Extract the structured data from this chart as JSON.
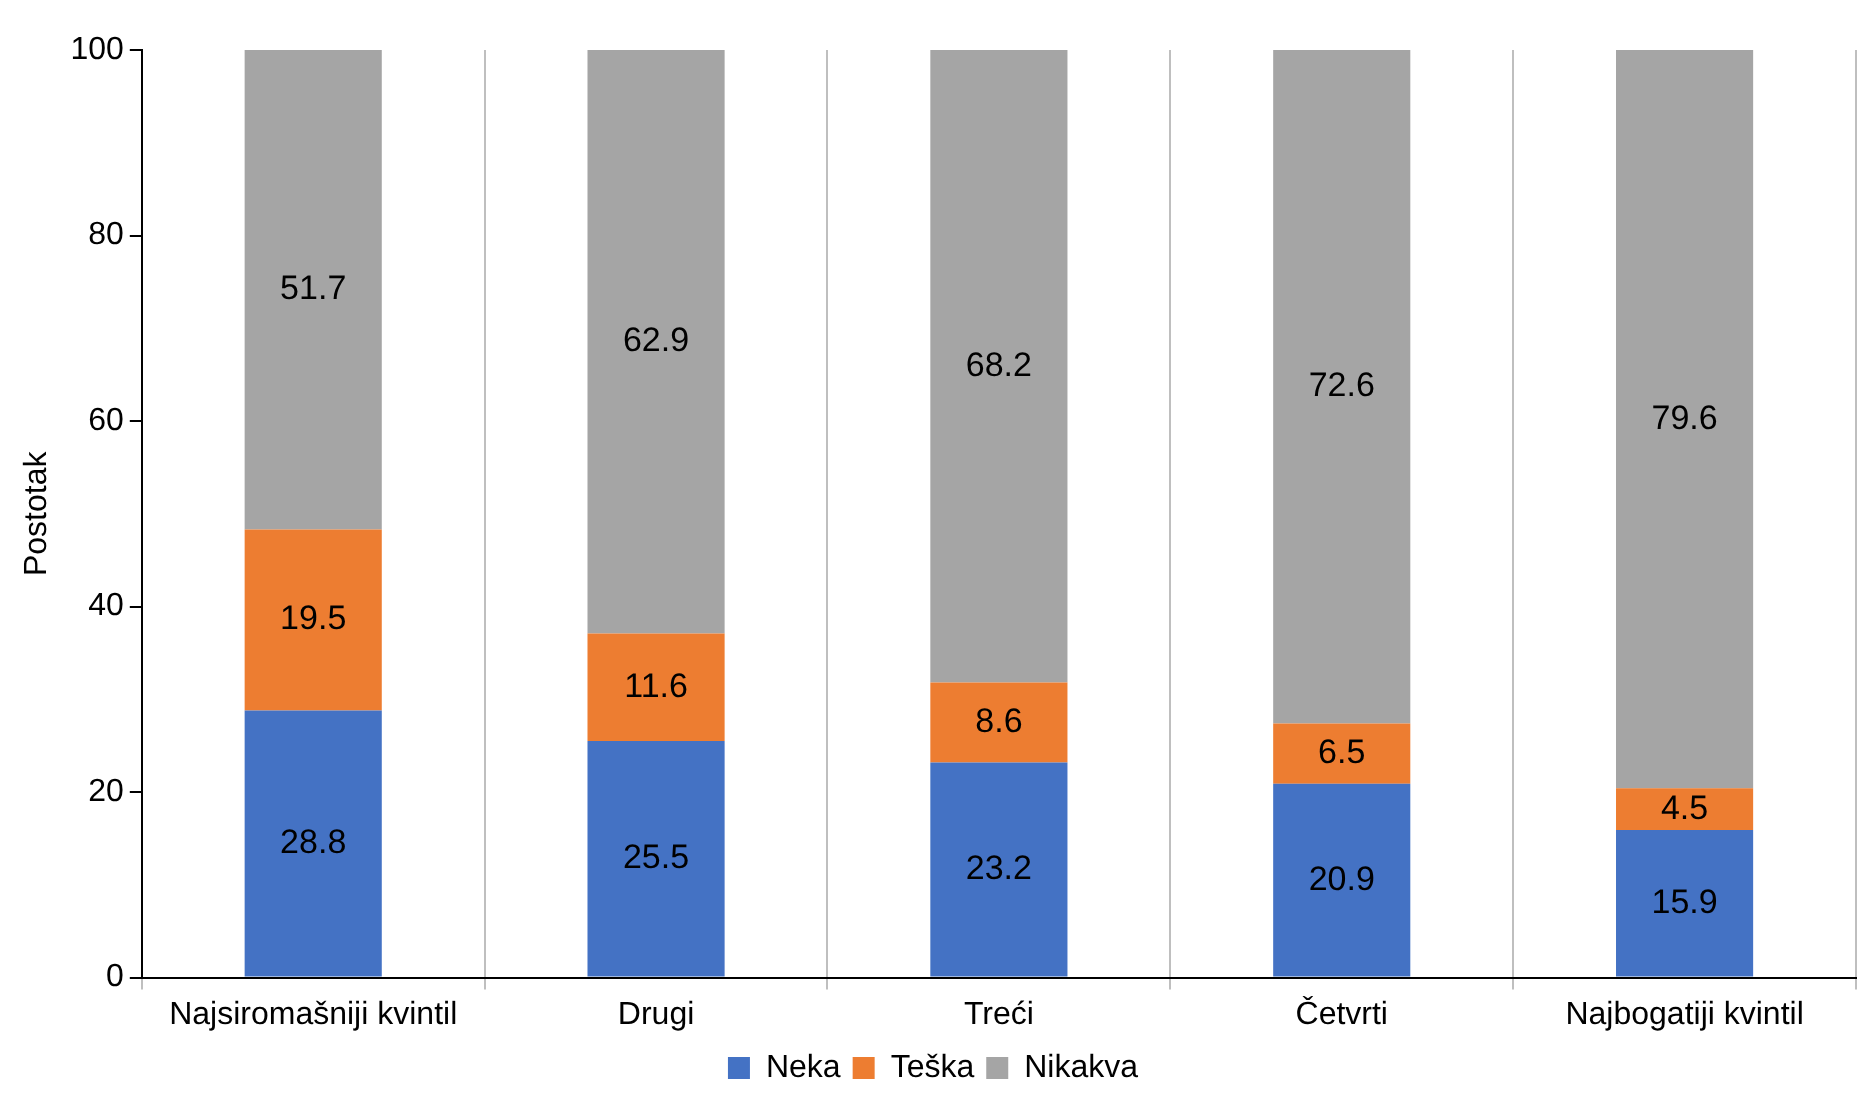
{
  "chart_data": {
    "type": "bar",
    "ylabel": "Postotak",
    "categories": [
      "Najsiromašniji kvintil",
      "Drugi",
      "Treći",
      "Četvrti",
      "Najbogatiji kvintil"
    ],
    "series": [
      {
        "name": "Neka",
        "color": "#4472c4",
        "values": [
          28.8,
          25.5,
          23.2,
          20.9,
          15.9
        ]
      },
      {
        "name": "Teška",
        "color": "#ed7d31",
        "values": [
          19.5,
          11.6,
          8.6,
          6.5,
          4.5
        ]
      },
      {
        "name": "Nikakva",
        "color": "#a5a5a5",
        "values": [
          51.7,
          62.9,
          68.2,
          72.6,
          79.6
        ]
      }
    ],
    "stacked": true,
    "ylim": [
      0,
      100
    ],
    "yticks": [
      0,
      20,
      40,
      60,
      80,
      100
    ],
    "grid": "x",
    "legend": "bottom",
    "data_labels": true
  }
}
